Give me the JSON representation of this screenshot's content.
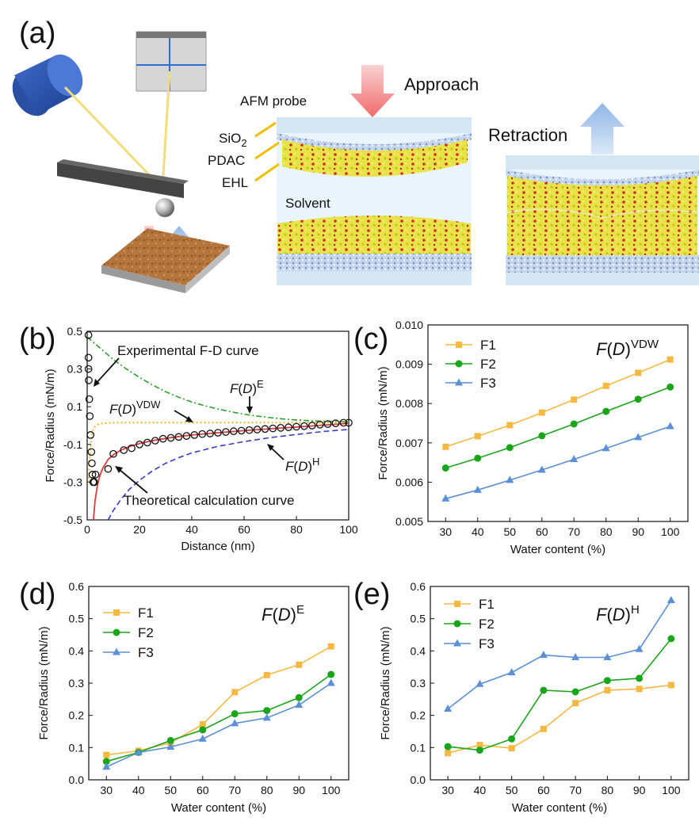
{
  "panel_labels": {
    "a": "(a)",
    "b": "(b)",
    "c": "(c)",
    "d": "(d)",
    "e": "(e)"
  },
  "schematic": {
    "approach": "Approach",
    "retraction": "Retraction",
    "afm_probe": "AFM probe",
    "sio2": "SiO",
    "sio2_sub": "2",
    "pdac": "PDAC",
    "ehl": "EHL",
    "solvent": "Solvent"
  },
  "colors": {
    "F1": "#f5b942",
    "F2": "#1aa51a",
    "F3": "#5b8fd6",
    "exp": "#111111",
    "theory": "#e03a3a",
    "FE": "#2aa02a",
    "FVDW": "#f0b429",
    "FH": "#3a3ac8"
  },
  "chart_data": [
    {
      "id": "b",
      "type": "line",
      "xlabel": "Distance (nm)",
      "ylabel": "Force/Radius (mN/m)",
      "xlim": [
        0,
        100
      ],
      "ylim": [
        -0.5,
        0.5
      ],
      "xticks": [
        "0",
        "20",
        "40",
        "60",
        "80",
        "100"
      ],
      "yticks": [
        "-0.5",
        "-0.3",
        "-0.1",
        "0.1",
        "0.3",
        "0.5"
      ],
      "annotations": {
        "exp": "Experimental F-D curve",
        "theory": "Theoretical calculation curve",
        "fd_base": "F",
        "fd_paren_open": "(",
        "fd_var": "D",
        "fd_paren_close": ")",
        "vdw": "VDW",
        "e": "E",
        "h": "H"
      },
      "experimental_points": [
        [
          0.5,
          0.48
        ],
        [
          0.5,
          0.36
        ],
        [
          0.5,
          0.3
        ],
        [
          0.6,
          0.24
        ],
        [
          0.8,
          0.14
        ],
        [
          1.0,
          0.05
        ],
        [
          1.3,
          -0.05
        ],
        [
          1.6,
          -0.14
        ],
        [
          1.8,
          -0.2
        ],
        [
          2.0,
          -0.26
        ],
        [
          2.3,
          -0.3
        ],
        [
          2.7,
          -0.3
        ],
        [
          3.2,
          -0.26
        ],
        [
          8,
          -0.23
        ],
        [
          10,
          -0.15
        ],
        [
          14,
          -0.13
        ],
        [
          17,
          -0.12
        ],
        [
          20,
          -0.1
        ],
        [
          23,
          -0.09
        ],
        [
          26,
          -0.08
        ],
        [
          29,
          -0.07
        ],
        [
          32,
          -0.065
        ],
        [
          35,
          -0.06
        ],
        [
          38,
          -0.055
        ],
        [
          41,
          -0.05
        ],
        [
          44,
          -0.045
        ],
        [
          47,
          -0.042
        ],
        [
          50,
          -0.038
        ],
        [
          53,
          -0.034
        ],
        [
          56,
          -0.03
        ],
        [
          59,
          -0.027
        ],
        [
          62,
          -0.024
        ],
        [
          65,
          -0.021
        ],
        [
          68,
          -0.018
        ],
        [
          71,
          -0.015
        ],
        [
          74,
          -0.012
        ],
        [
          77,
          -0.009
        ],
        [
          80,
          -0.006
        ],
        [
          83,
          -0.003
        ],
        [
          86,
          0.0
        ],
        [
          89,
          0.005
        ],
        [
          92,
          0.008
        ],
        [
          95,
          0.012
        ],
        [
          98,
          0.015
        ],
        [
          100,
          0.015
        ]
      ],
      "theory_curve": [
        [
          2.4,
          -0.5
        ],
        [
          3,
          -0.4
        ],
        [
          4,
          -0.31
        ],
        [
          5,
          -0.26
        ],
        [
          6,
          -0.225
        ],
        [
          8,
          -0.18
        ],
        [
          10,
          -0.155
        ],
        [
          13,
          -0.13
        ],
        [
          16,
          -0.112
        ],
        [
          20,
          -0.095
        ],
        [
          25,
          -0.08
        ],
        [
          30,
          -0.068
        ],
        [
          35,
          -0.058
        ],
        [
          40,
          -0.05
        ],
        [
          50,
          -0.038
        ],
        [
          60,
          -0.027
        ],
        [
          70,
          -0.017
        ],
        [
          80,
          -0.008
        ],
        [
          90,
          0.002
        ],
        [
          100,
          0.012
        ]
      ],
      "FE_curve": [
        [
          0,
          0.47
        ],
        [
          5,
          0.41
        ],
        [
          10,
          0.35
        ],
        [
          15,
          0.3
        ],
        [
          20,
          0.255
        ],
        [
          25,
          0.215
        ],
        [
          30,
          0.18
        ],
        [
          35,
          0.15
        ],
        [
          40,
          0.125
        ],
        [
          45,
          0.105
        ],
        [
          50,
          0.088
        ],
        [
          55,
          0.073
        ],
        [
          60,
          0.06
        ],
        [
          65,
          0.05
        ],
        [
          70,
          0.042
        ],
        [
          75,
          0.035
        ],
        [
          80,
          0.03
        ],
        [
          85,
          0.026
        ],
        [
          90,
          0.023
        ],
        [
          95,
          0.021
        ],
        [
          100,
          0.02
        ]
      ],
      "FVDW_curve": [
        [
          0.5,
          -0.3
        ],
        [
          1,
          -0.17
        ],
        [
          1.5,
          -0.08
        ],
        [
          2,
          -0.03
        ],
        [
          3,
          -0.005
        ],
        [
          4,
          0.005
        ],
        [
          6,
          0.012
        ],
        [
          10,
          0.015
        ],
        [
          20,
          0.016
        ],
        [
          40,
          0.016
        ],
        [
          60,
          0.016
        ],
        [
          80,
          0.016
        ],
        [
          100,
          0.016
        ]
      ],
      "FH_curve": [
        [
          8,
          -0.5
        ],
        [
          10,
          -0.45
        ],
        [
          13,
          -0.39
        ],
        [
          16,
          -0.34
        ],
        [
          20,
          -0.29
        ],
        [
          25,
          -0.24
        ],
        [
          30,
          -0.2
        ],
        [
          35,
          -0.17
        ],
        [
          40,
          -0.145
        ],
        [
          50,
          -0.11
        ],
        [
          60,
          -0.085
        ],
        [
          70,
          -0.064
        ],
        [
          80,
          -0.047
        ],
        [
          90,
          -0.032
        ],
        [
          100,
          -0.02
        ]
      ]
    },
    {
      "id": "c",
      "type": "line",
      "title_base": "F",
      "title_var": "D",
      "title_sup": "VDW",
      "xlabel": "Water content (%)",
      "ylabel": "Force/Radius (mN/m)",
      "x": [
        30,
        40,
        50,
        60,
        70,
        80,
        90,
        100
      ],
      "xticks": [
        "30",
        "40",
        "50",
        "60",
        "70",
        "80",
        "90",
        "100"
      ],
      "ylim": [
        0.005,
        0.01
      ],
      "yticks": [
        "0.005",
        "0.006",
        "0.007",
        "0.008",
        "0.009",
        "0.010"
      ],
      "legend": "top-left",
      "series": [
        {
          "name": "F1",
          "marker": "square",
          "values": [
            0.0069,
            0.00717,
            0.00745,
            0.00777,
            0.0081,
            0.00845,
            0.00878,
            0.00912
          ]
        },
        {
          "name": "F2",
          "marker": "circle",
          "values": [
            0.00636,
            0.00661,
            0.00688,
            0.00718,
            0.00748,
            0.0078,
            0.00811,
            0.00842
          ]
        },
        {
          "name": "F3",
          "marker": "triangle",
          "values": [
            0.00558,
            0.0058,
            0.00605,
            0.00631,
            0.00658,
            0.00686,
            0.00714,
            0.00742
          ]
        }
      ]
    },
    {
      "id": "d",
      "type": "line",
      "title_base": "F",
      "title_var": "D",
      "title_sup": "E",
      "xlabel": "Water content (%)",
      "ylabel": "Force/Radius (mN/m)",
      "x": [
        30,
        40,
        50,
        60,
        70,
        80,
        90,
        100
      ],
      "xticks": [
        "30",
        "40",
        "50",
        "60",
        "70",
        "80",
        "90",
        "100"
      ],
      "ylim": [
        0,
        0.6
      ],
      "yticks": [
        "0.0",
        "0.1",
        "0.2",
        "0.3",
        "0.4",
        "0.5",
        "0.6"
      ],
      "legend": "top-left",
      "series": [
        {
          "name": "F1",
          "marker": "square",
          "values": [
            0.077,
            0.09,
            0.115,
            0.172,
            0.272,
            0.325,
            0.357,
            0.414
          ]
        },
        {
          "name": "F2",
          "marker": "circle",
          "values": [
            0.057,
            0.085,
            0.122,
            0.155,
            0.205,
            0.215,
            0.255,
            0.327
          ]
        },
        {
          "name": "F3",
          "marker": "triangle",
          "values": [
            0.04,
            0.085,
            0.102,
            0.127,
            0.175,
            0.192,
            0.232,
            0.3
          ]
        }
      ]
    },
    {
      "id": "e",
      "type": "line",
      "title_base": "F",
      "title_var": "D",
      "title_sup": "H",
      "xlabel": "Water content (%)",
      "ylabel": "Force/Radius (mN/m)",
      "x": [
        30,
        40,
        50,
        60,
        70,
        80,
        90,
        100
      ],
      "xticks": [
        "30",
        "40",
        "50",
        "60",
        "70",
        "80",
        "90",
        "100"
      ],
      "ylim": [
        0,
        0.6
      ],
      "yticks": [
        "0.0",
        "0.1",
        "0.2",
        "0.3",
        "0.4",
        "0.5",
        "0.6"
      ],
      "legend": "top-left",
      "series": [
        {
          "name": "F1",
          "marker": "square",
          "values": [
            0.083,
            0.108,
            0.098,
            0.158,
            0.238,
            0.278,
            0.282,
            0.294
          ]
        },
        {
          "name": "F2",
          "marker": "circle",
          "values": [
            0.103,
            0.092,
            0.127,
            0.278,
            0.273,
            0.308,
            0.315,
            0.438
          ]
        },
        {
          "name": "F3",
          "marker": "triangle",
          "values": [
            0.22,
            0.297,
            0.333,
            0.387,
            0.38,
            0.38,
            0.405,
            0.557
          ]
        }
      ]
    }
  ]
}
